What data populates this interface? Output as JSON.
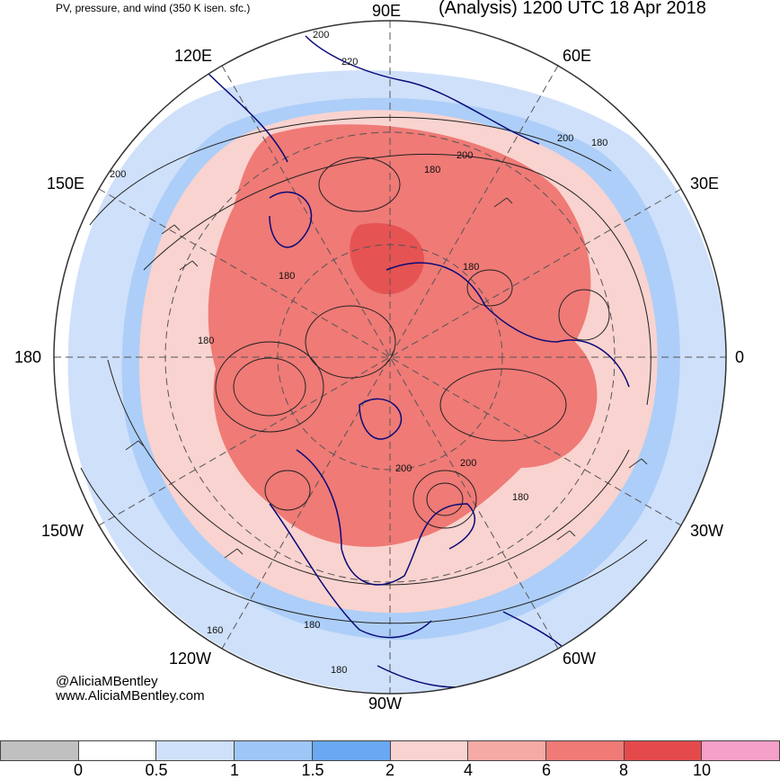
{
  "header": {
    "left_title": "PV, pressure, and wind (350 K isen. sfc.)",
    "right_title": "(Analysis) 1200 UTC 18 Apr 2018"
  },
  "longitude_labels": {
    "e90": "90E",
    "e60": "60E",
    "e120": "120E",
    "e150": "150E",
    "e30": "30E",
    "w180": "180",
    "zero": "0",
    "w150": "150W",
    "w30": "30W",
    "w120": "120W",
    "w60": "60W",
    "w90": "90W"
  },
  "contour_labels": [
    "200",
    "220",
    "200",
    "180",
    "200",
    "180",
    "200",
    "180",
    "180",
    "180",
    "200",
    "200",
    "180",
    "160",
    "180",
    "180"
  ],
  "credits": {
    "handle": "@AliciaMBentley",
    "website": "www.AliciaMBentley.com"
  },
  "colorbar": {
    "colors": [
      "#c0c0c0",
      "#ffffff",
      "#cfe0fa",
      "#9ec6f7",
      "#6aa8f2",
      "#f9d3cf",
      "#f5aaa5",
      "#ef7a76",
      "#e44a4b",
      "#f4a0c8"
    ],
    "ticks": [
      "0",
      "0.5",
      "1",
      "1.5",
      "2",
      "4",
      "6",
      "8",
      "10"
    ]
  },
  "palette": {
    "coastline": "#0a0a78",
    "pv_high": "#e8605d",
    "pv_mid": "#f7b4ae",
    "pv_low_blue": "#8ebcf3",
    "grid": "#555555"
  }
}
